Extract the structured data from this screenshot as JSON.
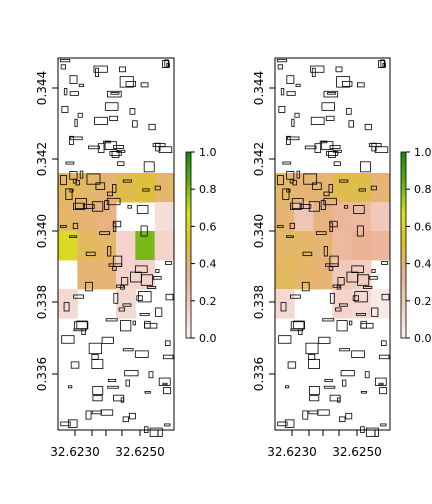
{
  "chart_data": [
    {
      "type": "heatmap",
      "title": "",
      "xlabel": "",
      "ylabel": "",
      "x_ticks": [
        "32.6230",
        "32.6250"
      ],
      "y_ticks": [
        "0.336",
        "0.338",
        "0.340",
        "0.342",
        "0.344"
      ],
      "legend_ticks": [
        "0.0",
        "0.2",
        "0.4",
        "0.6",
        "0.8",
        "1.0"
      ],
      "legend": "right",
      "grid": false,
      "color_scale": [
        "#f7f4f4",
        "#f2cfc5",
        "#eab08f",
        "#dcc12f",
        "#d9e21e",
        "#62ad16",
        "#0d8a0e"
      ],
      "cells": [
        {
          "col": 0,
          "row": 0,
          "value": 0.42
        },
        {
          "col": 1,
          "row": 0,
          "value": 0.4
        },
        {
          "col": 2,
          "row": 0,
          "value": 0.38
        },
        {
          "col": 3,
          "row": 0,
          "value": 0.45
        },
        {
          "col": 4,
          "row": 0,
          "value": 0.48
        },
        {
          "col": 5,
          "row": 0,
          "value": 0.4
        },
        {
          "col": 0,
          "row": 1,
          "value": 0.4
        },
        {
          "col": 1,
          "row": 1,
          "value": 0.38
        },
        {
          "col": 2,
          "row": 1,
          "value": 0.36
        },
        {
          "col": 3,
          "row": 1,
          "value": 0.0
        },
        {
          "col": 4,
          "row": 1,
          "value": 0.0
        },
        {
          "col": 5,
          "row": 1,
          "value": 0.1
        },
        {
          "col": 0,
          "row": 2,
          "value": 0.62
        },
        {
          "col": 1,
          "row": 2,
          "value": 0.42
        },
        {
          "col": 2,
          "row": 2,
          "value": 0.4
        },
        {
          "col": 3,
          "row": 2,
          "value": 0.15
        },
        {
          "col": 4,
          "row": 2,
          "value": 0.8
        },
        {
          "col": 5,
          "row": 2,
          "value": 0.15
        },
        {
          "col": 0,
          "row": 3,
          "value": 0.0
        },
        {
          "col": 1,
          "row": 3,
          "value": 0.38
        },
        {
          "col": 2,
          "row": 3,
          "value": 0.38
        },
        {
          "col": 3,
          "row": 3,
          "value": 0.15
        },
        {
          "col": 4,
          "row": 3,
          "value": 0.15
        },
        {
          "col": 5,
          "row": 3,
          "value": 0.0
        },
        {
          "col": 0,
          "row": 4,
          "value": 0.12
        },
        {
          "col": 1,
          "row": 4,
          "value": 0.0
        },
        {
          "col": 2,
          "row": 4,
          "value": 0.0
        },
        {
          "col": 3,
          "row": 4,
          "value": 0.12
        },
        {
          "col": 4,
          "row": 4,
          "value": 0.0
        },
        {
          "col": 5,
          "row": 4,
          "value": 0.0
        }
      ]
    },
    {
      "type": "heatmap",
      "title": "",
      "xlabel": "",
      "ylabel": "",
      "x_ticks": [
        "32.6230",
        "32.6250"
      ],
      "y_ticks": [
        "0.336",
        "0.338",
        "0.340",
        "0.342",
        "0.344"
      ],
      "legend_ticks": [
        "0.0",
        "0.2",
        "0.4",
        "0.6",
        "0.8",
        "1.0"
      ],
      "legend": "right",
      "grid": false,
      "color_scale": [
        "#f7f4f4",
        "#f2cfc5",
        "#eab08f",
        "#dcc12f",
        "#d9e21e",
        "#62ad16",
        "#0d8a0e"
      ],
      "cells": [
        {
          "col": 0,
          "row": 0,
          "value": 0.4
        },
        {
          "col": 1,
          "row": 0,
          "value": 0.38
        },
        {
          "col": 2,
          "row": 0,
          "value": 0.38
        },
        {
          "col": 3,
          "row": 0,
          "value": 0.45
        },
        {
          "col": 4,
          "row": 0,
          "value": 0.45
        },
        {
          "col": 5,
          "row": 0,
          "value": 0.38
        },
        {
          "col": 0,
          "row": 1,
          "value": 0.38
        },
        {
          "col": 1,
          "row": 1,
          "value": 0.22
        },
        {
          "col": 2,
          "row": 1,
          "value": 0.36
        },
        {
          "col": 3,
          "row": 1,
          "value": 0.3
        },
        {
          "col": 4,
          "row": 1,
          "value": 0.28
        },
        {
          "col": 5,
          "row": 1,
          "value": 0.2
        },
        {
          "col": 0,
          "row": 2,
          "value": 0.4
        },
        {
          "col": 1,
          "row": 2,
          "value": 0.4
        },
        {
          "col": 2,
          "row": 2,
          "value": 0.38
        },
        {
          "col": 3,
          "row": 2,
          "value": 0.28
        },
        {
          "col": 4,
          "row": 2,
          "value": 0.32
        },
        {
          "col": 5,
          "row": 2,
          "value": 0.3
        },
        {
          "col": 0,
          "row": 3,
          "value": 0.42
        },
        {
          "col": 1,
          "row": 3,
          "value": 0.4
        },
        {
          "col": 2,
          "row": 3,
          "value": 0.38
        },
        {
          "col": 3,
          "row": 3,
          "value": 0.2
        },
        {
          "col": 4,
          "row": 3,
          "value": 0.18
        },
        {
          "col": 5,
          "row": 3,
          "value": 0.0
        },
        {
          "col": 0,
          "row": 4,
          "value": 0.12
        },
        {
          "col": 1,
          "row": 4,
          "value": 0.0
        },
        {
          "col": 2,
          "row": 4,
          "value": 0.0
        },
        {
          "col": 3,
          "row": 4,
          "value": 0.15
        },
        {
          "col": 4,
          "row": 4,
          "value": 0.12
        },
        {
          "col": 5,
          "row": 4,
          "value": 0.05
        }
      ]
    }
  ]
}
